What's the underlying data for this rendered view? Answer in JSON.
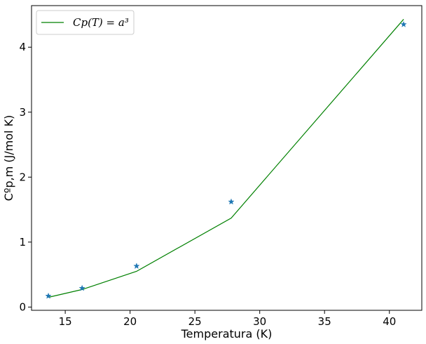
{
  "chart_data": {
    "type": "line",
    "title": "",
    "xlabel": "Temperatura (K)",
    "ylabel": "Cºp,m (J/mol K)",
    "xlim": [
      12.4,
      42.5
    ],
    "ylim": [
      -0.05,
      4.64
    ],
    "xticks": [
      15,
      20,
      25,
      30,
      35,
      40
    ],
    "yticks": [
      0,
      1,
      2,
      3,
      4
    ],
    "grid": false,
    "legend_placement": "upper-left",
    "series": [
      {
        "name": "Cp(T) = a³",
        "kind": "line",
        "color": "#008000",
        "x": [
          13.7,
          16.3,
          20.5,
          27.8,
          41.1
        ],
        "y": [
          0.15,
          0.27,
          0.55,
          1.37,
          4.43
        ]
      },
      {
        "kind": "scatter",
        "marker": "star",
        "color": "#1f77b4",
        "x": [
          13.7,
          16.3,
          20.5,
          27.8,
          41.1
        ],
        "y": [
          0.17,
          0.29,
          0.63,
          1.62,
          4.35
        ]
      }
    ]
  }
}
